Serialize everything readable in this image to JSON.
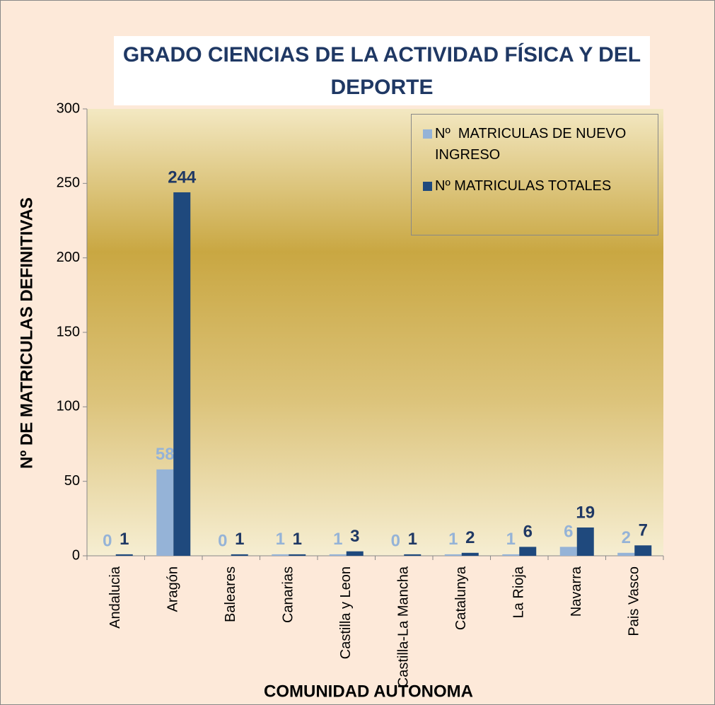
{
  "chart_data": {
    "type": "bar",
    "title": "GRADO CIENCIAS DE LA ACTIVIDAD FÍSICA Y DEL DEPORTE",
    "x_label": "COMUNIDAD AUTONOMA",
    "y_label": "Nº DE MATRICULAS DEFINITIVAS",
    "categories": [
      "Andalucia",
      "Aragón",
      "Baleares",
      "Canarias",
      "Castilla y Leon",
      "Castilla-La Mancha",
      "Catalunya",
      "La Rioja",
      "Navarra",
      "Pais Vasco"
    ],
    "series": [
      {
        "name": "Nº  MATRICULAS DE NUEVO INGRESO",
        "color": "#95b3d7",
        "label_color": "#95b3d7",
        "values": [
          0,
          58,
          0,
          1,
          1,
          0,
          1,
          1,
          6,
          2
        ]
      },
      {
        "name": "Nº MATRICULAS TOTALES",
        "color": "#1f497d",
        "label_color": "#1f3864",
        "values": [
          1,
          244,
          1,
          1,
          3,
          1,
          2,
          6,
          19,
          7
        ]
      }
    ],
    "ylim": [
      0,
      300
    ],
    "yticks": [
      0,
      50,
      100,
      150,
      200,
      250,
      300
    ],
    "legend": "top-right"
  }
}
